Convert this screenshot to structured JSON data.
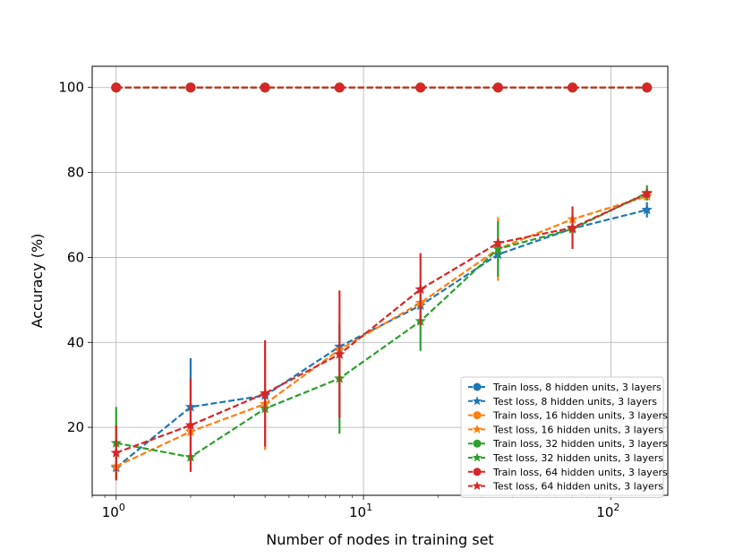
{
  "chart_data": {
    "type": "line",
    "title": "",
    "xlabel": "Number of nodes in training set",
    "ylabel": "Accuracy (%)",
    "xscale": "log",
    "xlim": [
      0.8,
      170
    ],
    "ylim": [
      4,
      105
    ],
    "grid": true,
    "legend_position": "lower-right",
    "x": [
      1,
      2,
      4,
      8,
      17,
      35,
      70,
      140
    ],
    "xticks": [
      {
        "value": 1,
        "base": "10",
        "exp": "0"
      },
      {
        "value": 10,
        "base": "10",
        "exp": "1"
      },
      {
        "value": 100,
        "base": "10",
        "exp": "2"
      }
    ],
    "yticks": [
      {
        "value": 20,
        "label": "20"
      },
      {
        "value": 40,
        "label": "40"
      },
      {
        "value": 60,
        "label": "60"
      },
      {
        "value": 80,
        "label": "80"
      },
      {
        "value": 100,
        "label": "100"
      }
    ],
    "series": [
      {
        "name": "Train loss, 8 hidden units, 3 layers",
        "color": "#1f77b4",
        "marker": "circle",
        "values": [
          100,
          100,
          100,
          100,
          100,
          100,
          100,
          100
        ],
        "errors": [
          0,
          0,
          0,
          0,
          0,
          0,
          0,
          0
        ]
      },
      {
        "name": "Test loss, 8 hidden units, 3 layers",
        "color": "#1f77b4",
        "marker": "star",
        "values": [
          10.5,
          24.8,
          27.5,
          39.0,
          48.7,
          60.7,
          66.8,
          71.2
        ],
        "errors": [
          1.0,
          11.5,
          1.0,
          1.0,
          1.0,
          1.0,
          1.0,
          1.8
        ]
      },
      {
        "name": "Train loss, 16 hidden units, 3 layers",
        "color": "#ff7f0e",
        "marker": "circle",
        "values": [
          100,
          100,
          100,
          100,
          100,
          100,
          100,
          100
        ],
        "errors": [
          0,
          0,
          0,
          0,
          0,
          0,
          0,
          0
        ]
      },
      {
        "name": "Test loss, 16 hidden units, 3 layers",
        "color": "#ff7f0e",
        "marker": "star",
        "values": [
          10.8,
          19.0,
          25.5,
          38.3,
          49.3,
          62.0,
          69.0,
          74.4
        ],
        "errors": [
          1.0,
          1.0,
          10.8,
          1.0,
          1.0,
          7.5,
          1.0,
          1.0
        ]
      },
      {
        "name": "Train loss, 32 hidden units, 3 layers",
        "color": "#2ca02c",
        "marker": "circle",
        "values": [
          100,
          100,
          100,
          100,
          100,
          100,
          100,
          100
        ],
        "errors": [
          0,
          0,
          0,
          0,
          0,
          0,
          0,
          0
        ]
      },
      {
        "name": "Test loss, 32 hidden units, 3 layers",
        "color": "#2ca02c",
        "marker": "star",
        "values": [
          16.3,
          13.0,
          24.4,
          31.5,
          45.0,
          62.0,
          66.7,
          75.2
        ],
        "errors": [
          8.5,
          1.0,
          1.0,
          13.0,
          7.0,
          6.5,
          1.0,
          1.8
        ]
      },
      {
        "name": "Train loss, 64 hidden units, 3 layers",
        "color": "#d62728",
        "marker": "circle",
        "values": [
          100,
          100,
          100,
          100,
          100,
          100,
          100,
          100
        ],
        "errors": [
          0,
          0,
          0,
          0,
          0,
          0,
          0,
          0
        ]
      },
      {
        "name": "Test loss, 64 hidden units, 3 layers",
        "color": "#d62728",
        "marker": "star",
        "values": [
          14.0,
          20.5,
          28.0,
          37.2,
          52.5,
          63.4,
          67.0,
          75.0
        ],
        "errors": [
          6.5,
          11.0,
          12.5,
          15.0,
          8.5,
          1.0,
          5.0,
          1.0
        ]
      }
    ]
  }
}
